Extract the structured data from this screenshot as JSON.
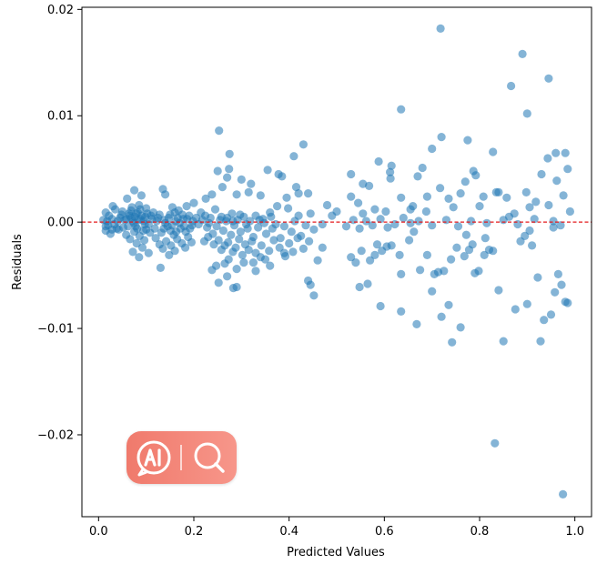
{
  "chart_data": {
    "type": "scatter",
    "title": "",
    "xlabel": "Predicted Values",
    "ylabel": "Residuals",
    "xlim": [
      -0.035,
      1.035
    ],
    "ylim": [
      -0.0277,
      0.0202
    ],
    "xticks": [
      0.0,
      0.2,
      0.4,
      0.6,
      0.8,
      1.0
    ],
    "xtick_labels": [
      "0.0",
      "0.2",
      "0.4",
      "0.6",
      "0.8",
      "1.0"
    ],
    "yticks": [
      -0.02,
      -0.01,
      0.0,
      0.01,
      0.02
    ],
    "ytick_labels": [
      "−0.02",
      "−0.01",
      "0.00",
      "0.01",
      "0.02"
    ],
    "reference_line": {
      "y": 0.0,
      "style": "dashed",
      "color": "#e41a1c"
    },
    "point_color": "#1f77b4",
    "grid": false,
    "points": [
      [
        0.718,
        0.0182
      ],
      [
        0.89,
        0.0158
      ],
      [
        0.866,
        0.0128
      ],
      [
        0.945,
        0.0135
      ],
      [
        0.9,
        0.0102
      ],
      [
        0.253,
        0.0086
      ],
      [
        0.635,
        0.0106
      ],
      [
        0.72,
        0.008
      ],
      [
        0.775,
        0.0077
      ],
      [
        0.43,
        0.0073
      ],
      [
        0.41,
        0.0062
      ],
      [
        0.275,
        0.0064
      ],
      [
        0.7,
        0.0069
      ],
      [
        0.828,
        0.0066
      ],
      [
        0.96,
        0.0065
      ],
      [
        0.98,
        0.0065
      ],
      [
        0.943,
        0.006
      ],
      [
        0.588,
        0.0057
      ],
      [
        0.355,
        0.0049
      ],
      [
        0.378,
        0.0045
      ],
      [
        0.274,
        0.005
      ],
      [
        0.25,
        0.0048
      ],
      [
        0.53,
        0.0045
      ],
      [
        0.615,
        0.0053
      ],
      [
        0.612,
        0.0047
      ],
      [
        0.68,
        0.0051
      ],
      [
        0.787,
        0.0048
      ],
      [
        0.93,
        0.0045
      ],
      [
        0.985,
        0.005
      ],
      [
        0.962,
        0.0039
      ],
      [
        0.27,
        0.0042
      ],
      [
        0.3,
        0.004
      ],
      [
        0.32,
        0.0036
      ],
      [
        0.385,
        0.0043
      ],
      [
        0.415,
        0.0033
      ],
      [
        0.555,
        0.0036
      ],
      [
        0.568,
        0.0034
      ],
      [
        0.613,
        0.0041
      ],
      [
        0.67,
        0.0043
      ],
      [
        0.717,
        0.0032
      ],
      [
        0.792,
        0.0044
      ],
      [
        0.77,
        0.0038
      ],
      [
        0.976,
        0.0025
      ],
      [
        0.84,
        0.0028
      ],
      [
        0.898,
        0.0028
      ],
      [
        0.135,
        0.0031
      ],
      [
        0.14,
        0.0026
      ],
      [
        0.075,
        0.003
      ],
      [
        0.09,
        0.0025
      ],
      [
        0.06,
        0.0022
      ],
      [
        0.238,
        0.0026
      ],
      [
        0.26,
        0.0033
      ],
      [
        0.225,
        0.0022
      ],
      [
        0.2,
        0.0018
      ],
      [
        0.185,
        0.0015
      ],
      [
        0.29,
        0.0026
      ],
      [
        0.315,
        0.0028
      ],
      [
        0.34,
        0.0025
      ],
      [
        0.375,
        0.0015
      ],
      [
        0.395,
        0.0023
      ],
      [
        0.42,
        0.0027
      ],
      [
        0.44,
        0.0027
      ],
      [
        0.48,
        0.0016
      ],
      [
        0.53,
        0.0024
      ],
      [
        0.545,
        0.0018
      ],
      [
        0.58,
        0.0012
      ],
      [
        0.635,
        0.0023
      ],
      [
        0.66,
        0.0015
      ],
      [
        0.69,
        0.0024
      ],
      [
        0.735,
        0.0022
      ],
      [
        0.76,
        0.0027
      ],
      [
        0.808,
        0.0024
      ],
      [
        0.835,
        0.0028
      ],
      [
        0.857,
        0.0023
      ],
      [
        0.8,
        0.0015
      ],
      [
        0.745,
        0.0014
      ],
      [
        0.688,
        0.001
      ],
      [
        0.655,
        0.0012
      ],
      [
        0.603,
        0.001
      ],
      [
        0.555,
        0.0008
      ],
      [
        0.5,
        0.001
      ],
      [
        0.445,
        0.0008
      ],
      [
        0.42,
        0.0006
      ],
      [
        0.398,
        0.0013
      ],
      [
        0.36,
        0.0009
      ],
      [
        0.33,
        0.0006
      ],
      [
        0.305,
        0.0005
      ],
      [
        0.28,
        0.0008
      ],
      [
        0.245,
        0.0012
      ],
      [
        0.215,
        0.0009
      ],
      [
        0.205,
        0.0004
      ],
      [
        0.168,
        0.0011
      ],
      [
        0.155,
        0.0014
      ],
      [
        0.115,
        0.0009
      ],
      [
        0.1,
        0.0013
      ],
      [
        0.085,
        0.0016
      ],
      [
        0.07,
        0.0014
      ],
      [
        0.05,
        0.001
      ],
      [
        0.035,
        0.0012
      ],
      [
        0.022,
        0.0006
      ],
      [
        0.015,
        0.0009
      ],
      [
        0.03,
        0.0015
      ],
      [
        0.045,
        0.0004
      ],
      [
        0.01,
        0.0002
      ],
      [
        0.02,
        -0.0003
      ],
      [
        0.028,
        0.0003
      ],
      [
        0.038,
        -0.0006
      ],
      [
        0.055,
        0.0002
      ],
      [
        0.065,
        0.0006
      ],
      [
        0.072,
        0.0001
      ],
      [
        0.078,
        -0.0004
      ],
      [
        0.082,
        0.0009
      ],
      [
        0.088,
        0.0003
      ],
      [
        0.094,
        -0.0008
      ],
      [
        0.098,
        0.0005
      ],
      [
        0.105,
        -0.0002
      ],
      [
        0.112,
        0.0003
      ],
      [
        0.118,
        -0.0006
      ],
      [
        0.125,
        0.0004
      ],
      [
        0.132,
        -0.001
      ],
      [
        0.138,
        0.0002
      ],
      [
        0.145,
        -0.0004
      ],
      [
        0.15,
        0.0007
      ],
      [
        0.158,
        -0.0012
      ],
      [
        0.162,
        0.0001
      ],
      [
        0.172,
        -0.0006
      ],
      [
        0.178,
        0.0003
      ],
      [
        0.183,
        -0.0009
      ],
      [
        0.19,
        0.0006
      ],
      [
        0.196,
        -0.0003
      ],
      [
        0.21,
        -0.0002
      ],
      [
        0.218,
        0.0002
      ],
      [
        0.228,
        -0.0005
      ],
      [
        0.235,
        0.0004
      ],
      [
        0.24,
        -0.0011
      ],
      [
        0.248,
        -0.0004
      ],
      [
        0.255,
        0.0002
      ],
      [
        0.262,
        -0.0008
      ],
      [
        0.268,
        0.0001
      ],
      [
        0.278,
        -0.0012
      ],
      [
        0.285,
        -0.0003
      ],
      [
        0.292,
        0.0002
      ],
      [
        0.298,
        -0.0009
      ],
      [
        0.31,
        -0.0002
      ],
      [
        0.318,
        0.0001
      ],
      [
        0.325,
        -0.0014
      ],
      [
        0.335,
        -0.0005
      ],
      [
        0.345,
        0.0003
      ],
      [
        0.352,
        -0.0011
      ],
      [
        0.365,
        -0.0006
      ],
      [
        0.372,
        -0.0002
      ],
      [
        0.382,
        -0.0015
      ],
      [
        0.39,
        -0.0004
      ],
      [
        0.405,
        -0.0009
      ],
      [
        0.412,
        0.0001
      ],
      [
        0.425,
        -0.0013
      ],
      [
        0.435,
        -0.0003
      ],
      [
        0.452,
        -0.0007
      ],
      [
        0.47,
        -0.0002
      ],
      [
        0.49,
        0.0006
      ],
      [
        0.52,
        -0.0004
      ],
      [
        0.535,
        0.0002
      ],
      [
        0.548,
        -0.0006
      ],
      [
        0.562,
        0.0001
      ],
      [
        0.575,
        -0.0003
      ],
      [
        0.592,
        0.0003
      ],
      [
        0.607,
        -0.0005
      ],
      [
        0.622,
        -0.0002
      ],
      [
        0.64,
        0.0004
      ],
      [
        0.655,
        -0.0001
      ],
      [
        0.672,
        0.0001
      ],
      [
        0.7,
        -0.0003
      ],
      [
        0.73,
        0.0002
      ],
      [
        0.755,
        -0.0004
      ],
      [
        0.782,
        0.0001
      ],
      [
        0.815,
        -0.0001
      ],
      [
        0.85,
        0.0002
      ],
      [
        0.88,
        -0.0002
      ],
      [
        0.915,
        0.0003
      ],
      [
        0.955,
        0.0001
      ],
      [
        0.97,
        -0.0003
      ],
      [
        0.99,
        0.001
      ],
      [
        0.015,
        -0.0008
      ],
      [
        0.025,
        -0.0011
      ],
      [
        0.042,
        -0.0007
      ],
      [
        0.058,
        -0.0012
      ],
      [
        0.066,
        -0.0016
      ],
      [
        0.075,
        -0.0009
      ],
      [
        0.08,
        -0.002
      ],
      [
        0.086,
        -0.0013
      ],
      [
        0.092,
        -0.0024
      ],
      [
        0.096,
        -0.0017
      ],
      [
        0.108,
        -0.001
      ],
      [
        0.12,
        -0.0015
      ],
      [
        0.128,
        -0.0021
      ],
      [
        0.135,
        -0.0025
      ],
      [
        0.142,
        -0.0018
      ],
      [
        0.152,
        -0.0022
      ],
      [
        0.16,
        -0.0027
      ],
      [
        0.165,
        -0.0016
      ],
      [
        0.175,
        -0.002
      ],
      [
        0.182,
        -0.0024
      ],
      [
        0.188,
        -0.0014
      ],
      [
        0.195,
        -0.0019
      ],
      [
        0.222,
        -0.0018
      ],
      [
        0.23,
        -0.0014
      ],
      [
        0.242,
        -0.0021
      ],
      [
        0.252,
        -0.0017
      ],
      [
        0.258,
        -0.0026
      ],
      [
        0.265,
        -0.0022
      ],
      [
        0.272,
        -0.0019
      ],
      [
        0.282,
        -0.0028
      ],
      [
        0.288,
        -0.0024
      ],
      [
        0.295,
        -0.0016
      ],
      [
        0.302,
        -0.0031
      ],
      [
        0.308,
        -0.0021
      ],
      [
        0.315,
        -0.0026
      ],
      [
        0.322,
        -0.0018
      ],
      [
        0.33,
        -0.0029
      ],
      [
        0.342,
        -0.0022
      ],
      [
        0.35,
        -0.0035
      ],
      [
        0.358,
        -0.0027
      ],
      [
        0.368,
        -0.0017
      ],
      [
        0.38,
        -0.0024
      ],
      [
        0.392,
        -0.0032
      ],
      [
        0.4,
        -0.002
      ],
      [
        0.408,
        -0.0028
      ],
      [
        0.418,
        -0.0015
      ],
      [
        0.43,
        -0.0025
      ],
      [
        0.442,
        -0.0018
      ],
      [
        0.085,
        -0.0033
      ],
      [
        0.13,
        -0.0043
      ],
      [
        0.105,
        -0.0029
      ],
      [
        0.072,
        -0.0028
      ],
      [
        0.148,
        -0.0031
      ],
      [
        0.265,
        -0.0039
      ],
      [
        0.273,
        -0.0035
      ],
      [
        0.29,
        -0.0044
      ],
      [
        0.325,
        -0.0038
      ],
      [
        0.36,
        -0.0041
      ],
      [
        0.238,
        -0.0045
      ],
      [
        0.247,
        -0.0041
      ],
      [
        0.27,
        -0.0051
      ],
      [
        0.305,
        -0.0038
      ],
      [
        0.33,
        -0.0046
      ],
      [
        0.252,
        -0.0057
      ],
      [
        0.29,
        -0.0061
      ],
      [
        0.283,
        -0.0062
      ],
      [
        0.34,
        -0.0033
      ],
      [
        0.39,
        -0.0029
      ],
      [
        0.44,
        -0.0055
      ],
      [
        0.452,
        -0.0069
      ],
      [
        0.445,
        -0.0059
      ],
      [
        0.46,
        -0.0036
      ],
      [
        0.47,
        -0.0024
      ],
      [
        0.53,
        -0.0033
      ],
      [
        0.54,
        -0.0038
      ],
      [
        0.552,
        -0.0027
      ],
      [
        0.57,
        -0.0036
      ],
      [
        0.585,
        -0.0021
      ],
      [
        0.548,
        -0.0061
      ],
      [
        0.565,
        -0.0058
      ],
      [
        0.58,
        -0.0031
      ],
      [
        0.595,
        -0.0027
      ],
      [
        0.605,
        -0.0023
      ],
      [
        0.592,
        -0.0079
      ],
      [
        0.615,
        -0.0022
      ],
      [
        0.632,
        -0.0031
      ],
      [
        0.635,
        -0.0049
      ],
      [
        0.652,
        -0.0017
      ],
      [
        0.662,
        -0.0009
      ],
      [
        0.675,
        -0.0045
      ],
      [
        0.635,
        -0.0084
      ],
      [
        0.668,
        -0.0096
      ],
      [
        0.69,
        -0.0031
      ],
      [
        0.7,
        -0.0065
      ],
      [
        0.705,
        -0.0049
      ],
      [
        0.713,
        -0.0047
      ],
      [
        0.72,
        -0.0089
      ],
      [
        0.735,
        -0.0078
      ],
      [
        0.725,
        -0.0046
      ],
      [
        0.74,
        -0.0035
      ],
      [
        0.742,
        -0.0113
      ],
      [
        0.752,
        -0.0024
      ],
      [
        0.76,
        -0.0099
      ],
      [
        0.768,
        -0.0032
      ],
      [
        0.778,
        -0.0026
      ],
      [
        0.785,
        -0.0021
      ],
      [
        0.79,
        -0.0048
      ],
      [
        0.798,
        -0.0046
      ],
      [
        0.81,
        -0.0031
      ],
      [
        0.82,
        -0.0026
      ],
      [
        0.828,
        -0.0027
      ],
      [
        0.832,
        -0.0208
      ],
      [
        0.84,
        -0.0064
      ],
      [
        0.85,
        -0.0112
      ],
      [
        0.875,
        -0.0082
      ],
      [
        0.886,
        -0.0018
      ],
      [
        0.895,
        -0.0013
      ],
      [
        0.9,
        -0.0077
      ],
      [
        0.91,
        -0.0022
      ],
      [
        0.922,
        -0.0052
      ],
      [
        0.928,
        -0.0112
      ],
      [
        0.935,
        -0.0092
      ],
      [
        0.95,
        -0.0087
      ],
      [
        0.958,
        -0.0066
      ],
      [
        0.965,
        -0.0049
      ],
      [
        0.972,
        -0.0059
      ],
      [
        0.975,
        -0.0256
      ],
      [
        0.98,
        -0.0075
      ],
      [
        0.985,
        -0.0076
      ],
      [
        0.955,
        -0.0005
      ],
      [
        0.905,
        -0.0008
      ],
      [
        0.812,
        -0.0015
      ],
      [
        0.772,
        -0.0012
      ],
      [
        0.862,
        0.0005
      ],
      [
        0.873,
        0.0008
      ],
      [
        0.905,
        0.0014
      ],
      [
        0.918,
        0.0019
      ],
      [
        0.945,
        0.0016
      ],
      [
        0.018,
        0.0001
      ],
      [
        0.033,
        -0.0002
      ],
      [
        0.048,
        0.0007
      ],
      [
        0.062,
        -0.0004
      ],
      [
        0.068,
        0.0011
      ],
      [
        0.076,
        0.0005
      ],
      [
        0.081,
        -0.0006
      ],
      [
        0.087,
        0.0012
      ],
      [
        0.091,
        0.0006
      ],
      [
        0.097,
        -0.0002
      ],
      [
        0.102,
        0.0008
      ],
      [
        0.084,
        0.0002
      ],
      [
        0.079,
        0.0008
      ],
      [
        0.074,
        -0.0001
      ],
      [
        0.069,
        0.0004
      ],
      [
        0.064,
        0.0008
      ],
      [
        0.095,
        0.0001
      ],
      [
        0.1,
        -0.0007
      ],
      [
        0.11,
        0.0006
      ],
      [
        0.122,
        0.0001
      ],
      [
        0.128,
        0.0007
      ],
      [
        0.14,
        -0.0001
      ],
      [
        0.147,
        0.0004
      ],
      [
        0.154,
        -0.0003
      ],
      [
        0.16,
        0.0009
      ],
      [
        0.166,
        0.0004
      ],
      [
        0.17,
        -0.0001
      ],
      [
        0.176,
        0.0007
      ],
      [
        0.18,
        -0.0004
      ],
      [
        0.186,
        0.0003
      ],
      [
        0.192,
        -0.0006
      ],
      [
        0.198,
        0.0001
      ],
      [
        0.163,
        -0.0009
      ],
      [
        0.151,
        -0.0008
      ],
      [
        0.137,
        -0.0006
      ],
      [
        0.224,
        0.0006
      ],
      [
        0.232,
        -0.0001
      ],
      [
        0.258,
        0.0005
      ],
      [
        0.27,
        0.0004
      ],
      [
        0.282,
        0.0001
      ],
      [
        0.297,
        0.0007
      ],
      [
        0.313,
        -0.0006
      ],
      [
        0.338,
        0.0002
      ],
      [
        0.348,
        -0.0001
      ],
      [
        0.362,
        0.0005
      ],
      [
        0.015,
        -0.0004
      ],
      [
        0.028,
        -0.0007
      ],
      [
        0.04,
        0.0001
      ],
      [
        0.052,
        -0.0005
      ],
      [
        0.058,
        0.0003
      ]
    ]
  }
}
